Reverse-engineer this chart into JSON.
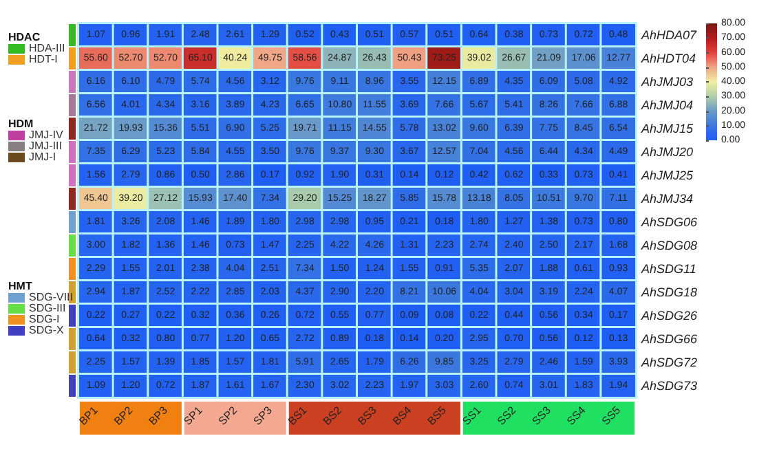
{
  "chart_data": {
    "type": "heatmap",
    "categories": [
      "BP1",
      "BP2",
      "BP3",
      "SP1",
      "SP2",
      "SP3",
      "BS1",
      "BS2",
      "BS3",
      "BS4",
      "BS5",
      "SS1",
      "SS2",
      "SS3",
      "SS4",
      "SS5"
    ],
    "y_categories": [
      "AhHDA07",
      "AhHDT04",
      "AhJMJ03",
      "AhJMJ04",
      "AhJMJ15",
      "AhJMJ20",
      "AhJMJ25",
      "AhJMJ34",
      "AhSDG06",
      "AhSDG08",
      "AhSDG11",
      "AhSDG18",
      "AhSDG26",
      "AhSDG66",
      "AhSDG72",
      "AhSDG73"
    ],
    "cells": [
      [
        1.07,
        0.96,
        1.91,
        2.48,
        2.61,
        1.29,
        0.52,
        0.43,
        0.51,
        0.57,
        0.51,
        0.64,
        0.38,
        0.73,
        0.72,
        0.48
      ],
      [
        55.6,
        52.7,
        52.7,
        65.1,
        40.24,
        49.75,
        58.56,
        24.87,
        26.43,
        50.43,
        73.25,
        39.02,
        26.67,
        21.09,
        17.06,
        12.77
      ],
      [
        6.16,
        6.1,
        4.79,
        5.74,
        4.56,
        3.12,
        9.76,
        9.11,
        8.96,
        3.55,
        12.15,
        6.89,
        4.35,
        6.09,
        5.08,
        4.92
      ],
      [
        6.56,
        4.01,
        4.34,
        3.16,
        3.89,
        4.23,
        6.65,
        10.8,
        11.55,
        3.69,
        7.66,
        5.67,
        5.41,
        8.26,
        7.66,
        6.88
      ],
      [
        21.72,
        19.93,
        15.36,
        5.51,
        6.9,
        5.25,
        19.71,
        11.15,
        14.55,
        5.78,
        13.02,
        9.6,
        6.39,
        7.75,
        8.45,
        6.54
      ],
      [
        7.35,
        6.29,
        5.23,
        5.84,
        4.55,
        3.5,
        9.76,
        9.37,
        9.3,
        3.67,
        12.57,
        7.04,
        4.56,
        6.44,
        4.34,
        4.49
      ],
      [
        1.56,
        2.79,
        0.86,
        0.5,
        2.86,
        0.17,
        0.92,
        1.9,
        0.31,
        0.14,
        0.12,
        0.42,
        0.62,
        0.33,
        0.73,
        0.41
      ],
      [
        45.4,
        39.2,
        27.12,
        15.93,
        17.4,
        7.34,
        29.2,
        15.25,
        18.27,
        5.85,
        15.78,
        13.18,
        8.05,
        10.51,
        9.7,
        7.11
      ],
      [
        1.81,
        3.26,
        2.08,
        1.46,
        1.89,
        1.8,
        2.98,
        2.98,
        0.95,
        0.21,
        0.18,
        1.8,
        1.27,
        1.38,
        0.73,
        0.8
      ],
      [
        3.0,
        1.82,
        1.36,
        1.46,
        0.73,
        1.47,
        2.25,
        4.22,
        4.26,
        1.31,
        2.23,
        2.74,
        2.4,
        2.5,
        2.17,
        1.68
      ],
      [
        2.29,
        1.55,
        2.01,
        2.38,
        4.04,
        2.51,
        7.34,
        1.5,
        1.24,
        1.55,
        0.91,
        5.35,
        2.07,
        1.88,
        0.61,
        0.93
      ],
      [
        2.94,
        1.87,
        2.52,
        2.22,
        2.85,
        2.03,
        4.37,
        2.9,
        2.2,
        8.21,
        10.06,
        4.04,
        3.04,
        3.19,
        2.24,
        4.07
      ],
      [
        0.22,
        0.27,
        0.22,
        0.32,
        0.36,
        0.26,
        0.72,
        0.55,
        0.77,
        0.09,
        0.08,
        0.22,
        0.44,
        0.56,
        0.34,
        0.17
      ],
      [
        0.64,
        0.32,
        0.8,
        0.77,
        1.2,
        0.65,
        2.72,
        0.89,
        0.18,
        0.14,
        0.2,
        2.95,
        0.7,
        0.56,
        0.12,
        0.13
      ],
      [
        2.25,
        1.57,
        1.39,
        1.85,
        1.57,
        1.81,
        5.91,
        2.65,
        1.79,
        6.26,
        9.85,
        3.25,
        2.79,
        2.46,
        1.59,
        3.93
      ],
      [
        1.09,
        1.2,
        0.72,
        1.87,
        1.61,
        1.67,
        2.3,
        3.02,
        2.23,
        1.97,
        3.03,
        2.6,
        0.74,
        3.01,
        1.83,
        1.94
      ]
    ],
    "cell_labels": [
      [
        "1.07",
        "0.96",
        "1.91",
        "2.48",
        "2.61",
        "1.29",
        "0.52",
        "0.43",
        "0.51",
        "0.57",
        "0.51",
        "0.64",
        "0.38",
        "0.73",
        "0.72",
        "0.48"
      ],
      [
        "55.60",
        "52.70",
        "52.70",
        "65.10",
        "40.24",
        "49.75",
        "58.56",
        "24.87",
        "26.43",
        "50.43",
        "73.25",
        "39.02",
        "26.67",
        "21.09",
        "17.06",
        "12.77"
      ],
      [
        "6.16",
        "6.10",
        "4.79",
        "5.74",
        "4.56",
        "3.12",
        "9.76",
        "9.11",
        "8.96",
        "3.55",
        "12.15",
        "6.89",
        "4.35",
        "6.09",
        "5.08",
        "4.92"
      ],
      [
        "6.56",
        "4.01",
        "4.34",
        "3.16",
        "3.89",
        "4.23",
        "6.65",
        "10.80",
        "11.55",
        "3.69",
        "7.66",
        "5.67",
        "5.41",
        "8.26",
        "7.66",
        "6.88"
      ],
      [
        "21.72",
        "19.93",
        "15.36",
        "5.51",
        "6.90",
        "5.25",
        "19.71",
        "11.15",
        "14.55",
        "5.78",
        "13.02",
        "9.60",
        "6.39",
        "7.75",
        "8.45",
        "6.54"
      ],
      [
        "7.35",
        "6.29",
        "5.23",
        "5.84",
        "4.55",
        "3.50",
        "9.76",
        "9.37",
        "9.30",
        "3.67",
        "12.57",
        "7.04",
        "4.56",
        "6.44",
        "4.34",
        "4.49"
      ],
      [
        "1.56",
        "2.79",
        "0.86",
        "0.50",
        "2.86",
        "0.17",
        "0.92",
        "1.90",
        "0.31",
        "0.14",
        "0.12",
        "0.42",
        "0.62",
        "0.33",
        "0.73",
        "0.41"
      ],
      [
        "45.40",
        "39.20",
        "27.12",
        "15.93",
        "17.40",
        "7.34",
        "29.20",
        "15.25",
        "18.27",
        "5.85",
        "15.78",
        "13.18",
        "8.05",
        "10.51",
        "9.70",
        "7.11"
      ],
      [
        "1.81",
        "3.26",
        "2.08",
        "1.46",
        "1.89",
        "1.80",
        "2.98",
        "2.98",
        "0.95",
        "0.21",
        "0.18",
        "1.80",
        "1.27",
        "1.38",
        "0.73",
        "0.80"
      ],
      [
        "3.00",
        "1.82",
        "1.36",
        "1.46",
        "0.73",
        "1.47",
        "2.25",
        "4.22",
        "4.26",
        "1.31",
        "2.23",
        "2.74",
        "2.40",
        "2.50",
        "2.17",
        "1.68"
      ],
      [
        "2.29",
        "1.55",
        "2.01",
        "2.38",
        "4.04",
        "2.51",
        "7.34",
        "1.50",
        "1.24",
        "1.55",
        "0.91",
        "5.35",
        "2.07",
        "1.88",
        "0.61",
        "0.93"
      ],
      [
        "2.94",
        "1.87",
        "2.52",
        "2.22",
        "2.85",
        "2.03",
        "4.37",
        "2.90",
        "2.20",
        "8.21",
        "10.06",
        "4.04",
        "3.04",
        "3.19",
        "2.24",
        "4.07"
      ],
      [
        "0.22",
        "0.27",
        "0.22",
        "0.32",
        "0.36",
        "0.26",
        "0.72",
        "0.55",
        "0.77",
        "0.09",
        "0.08",
        "0.22",
        "0.44",
        "0.56",
        "0.34",
        "0.17"
      ],
      [
        "0.64",
        "0.32",
        "0.80",
        "0.77",
        "1.20",
        "0.65",
        "2.72",
        "0.89",
        "0.18",
        "0.14",
        "0.20",
        "2.95",
        "0.70",
        "0.56",
        "0.12",
        "0.13"
      ],
      [
        "2.25",
        "1.57",
        "1.39",
        "1.85",
        "1.57",
        "1.81",
        "5.91",
        "2.65",
        "1.79",
        "6.26",
        "9.85",
        "3.25",
        "2.79",
        "2.46",
        "1.59",
        "3.93"
      ],
      [
        "1.09",
        "1.20",
        "0.72",
        "1.87",
        "1.61",
        "1.67",
        "2.30",
        "3.02",
        "2.23",
        "1.97",
        "3.03",
        "2.60",
        "0.74",
        "3.01",
        "1.83",
        "1.94"
      ]
    ],
    "clim": [
      0,
      80
    ],
    "cticks": [
      {
        "value": 0,
        "label": "0.00"
      },
      {
        "value": 10,
        "label": "10.00"
      },
      {
        "value": 20,
        "label": "20.00"
      },
      {
        "value": 30,
        "label": "30.00"
      },
      {
        "value": 40,
        "label": "40.00"
      },
      {
        "value": 50,
        "label": "50.00"
      },
      {
        "value": 60,
        "label": "60.00"
      },
      {
        "value": 70,
        "label": "70.00"
      },
      {
        "value": 80,
        "label": "80.00"
      }
    ],
    "annotations": [
      "HDAC",
      "HDA-III",
      "HDT-I",
      "HDM",
      "JMJ-IV",
      "JMJ-III",
      "JMJ-I",
      "HMT",
      "SDG-VIII",
      "SDG-III",
      "SDG-I",
      "SDG-X"
    ]
  }
}
